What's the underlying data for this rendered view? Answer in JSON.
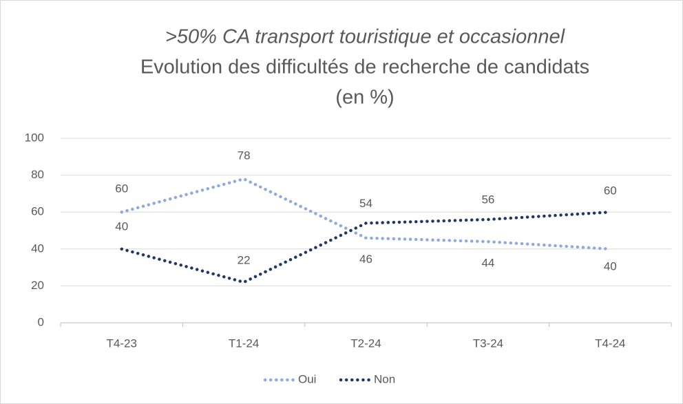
{
  "chart_data": {
    "type": "line",
    "title": ">50% CA transport touristique et occasionnel",
    "subtitle": "Evolution des difficultés de recherche de candidats",
    "unit": "(en %)",
    "categories": [
      "T4-23",
      "T1-24",
      "T2-24",
      "T3-24",
      "T4-24"
    ],
    "series": [
      {
        "name": "Oui",
        "color": "#8faadc",
        "values": [
          60,
          78,
          46,
          44,
          40
        ]
      },
      {
        "name": "Non",
        "color": "#203864",
        "values": [
          40,
          22,
          54,
          56,
          60
        ]
      }
    ],
    "ylim": [
      0,
      100
    ],
    "yticks": [
      0,
      20,
      40,
      60,
      80,
      100
    ],
    "grid": true,
    "legend": "bottom"
  }
}
